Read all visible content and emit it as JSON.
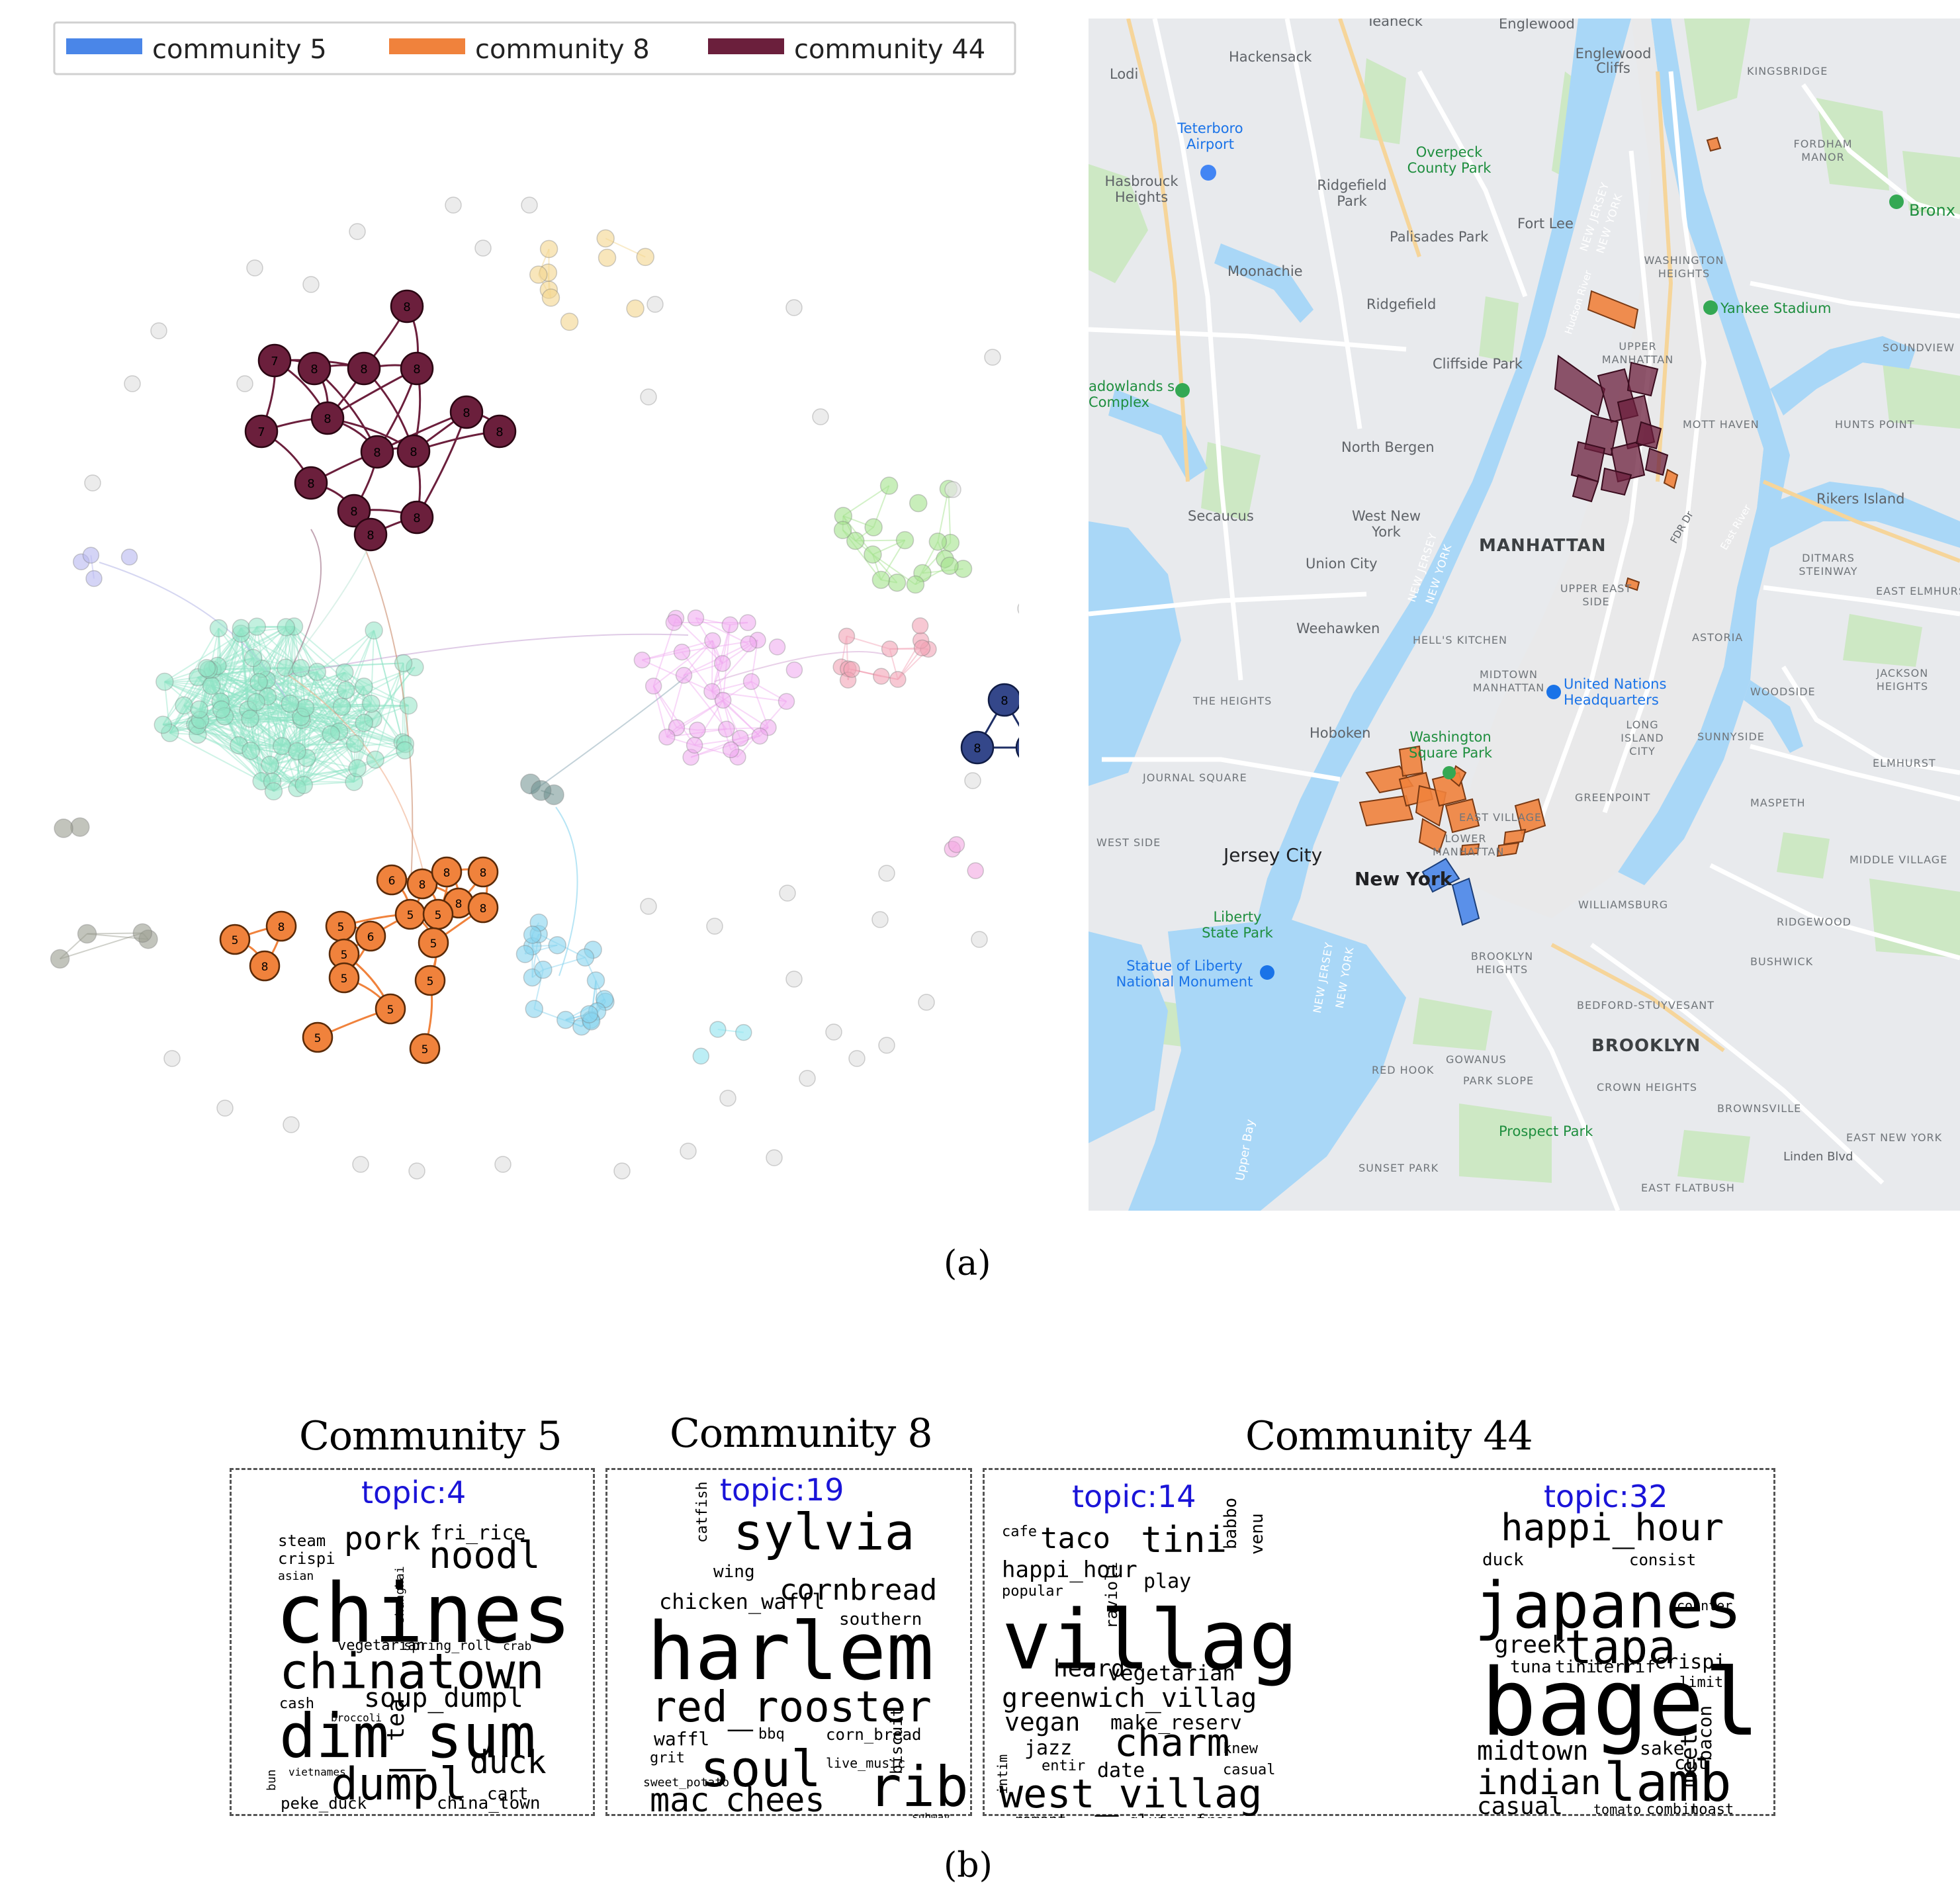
{
  "legend": {
    "entries": [
      {
        "label": "community 5",
        "color": "#4a86e8"
      },
      {
        "label": "community 8",
        "color": "#f0823c"
      },
      {
        "label": "community 44",
        "color": "#6b1f3c"
      }
    ]
  },
  "graph": {
    "node_labels": {
      "a": "7",
      "b": "8",
      "c": "6",
      "d": "5"
    }
  },
  "map": {
    "labels": {
      "teaneck": "Teaneck",
      "englewood": "Englewood",
      "hackensack": "Hackensack",
      "lodi": "Lodi",
      "englewood_cliffs": "Englewood Cliffs",
      "kingsbridge": "KINGSBRIDGE",
      "teterboro": "Teterboro Airport",
      "overpeck": "Overpeck County Park",
      "fordham": "FORDHAM MANOR",
      "hasbrouck": "Hasbrouck Heights",
      "ridgefield_park": "Ridgefield Park",
      "fort_lee": "Fort Lee",
      "bronx": "Bronx",
      "palisades_park": "Palisades Park",
      "washington_heights": "WASHINGTON HEIGHTS",
      "moonachie": "Moonachie",
      "ridgefield": "Ridgefield",
      "yankee_stadium": "Yankee Stadium",
      "upper_manhattan": "UPPER MANHATTAN",
      "cliffside_park": "Cliffside Park",
      "meadowlands": "adowlands s Complex",
      "soundview": "SOUNDVIEW",
      "mott_haven": "MOTT HAVEN",
      "hunts_point": "HUNTS POINT",
      "north_bergen": "North Bergen",
      "rikers": "Rikers Island",
      "secaucus": "Secaucus",
      "west_new_york": "West New York",
      "manhattan": "MANHATTAN",
      "union_city": "Union City",
      "ditmars": "DITMARS STEINWAY",
      "upper_east_side": "UPPER EAST SIDE",
      "east_elmhurst": "EAST ELMHURST",
      "weehawken": "Weehawken",
      "astoria": "ASTORIA",
      "hells_kitchen": "HELL'S KITCHEN",
      "midtown": "MIDTOWN MANHATTAN",
      "united_nations": "United Nations Headquarters",
      "jackson_heights": "JACKSON HEIGHTS",
      "the_heights": "THE HEIGHTS",
      "woodside": "WOODSIDE",
      "hoboken": "Hoboken",
      "long_island_city": "LONG ISLAND CITY",
      "sunnyside": "SUNNYSIDE",
      "washington_square": "Washington Square Park",
      "elmhurst": "ELMHURST",
      "journal_square": "JOURNAL SQUARE",
      "greenpoint": "GREENPOINT",
      "maspeth": "MASPETH",
      "east_village": "EAST VILLAGE",
      "jersey_city": "Jersey City",
      "new_york": "New York",
      "lower_manhattan": "LOWER MANHATTAN",
      "middle_village": "MIDDLE VILLAGE",
      "west_side": "WEST SIDE",
      "williamsburg": "WILLIAMSBURG",
      "liberty_state_park": "Liberty State Park",
      "ridgewood": "RIDGEWOOD",
      "statue_of_liberty": "Statue of Liberty National Monument",
      "brooklyn_heights": "BROOKLYN HEIGHTS",
      "bushwick": "BUSHWICK",
      "bedford_stuyvesant": "BEDFORD-STUYVESANT",
      "brooklyn": "BROOKLYN",
      "red_hook": "RED HOOK",
      "gowanus": "GOWANUS",
      "park_slope": "PARK SLOPE",
      "crown_heights": "CROWN HEIGHTS",
      "brownsville": "BROWNSVILLE",
      "prospect_park": "Prospect Park",
      "east_new_york": "EAST NEW YORK",
      "sunset_park": "SUNSET PARK",
      "linden_blvd": "Linden Blvd",
      "east_flatbush": "EAST FLATBUSH",
      "upper_bay": "Upper Bay",
      "new_jersey": "NEW JERSEY",
      "nj_ny": "NEW YORK",
      "hudson": "Hudson River",
      "east_river": "East River",
      "fdr": "FDR Dr"
    }
  },
  "captions": {
    "a": "(a)",
    "b": "(b)"
  },
  "communities": [
    {
      "title": "Community 5",
      "topics": [
        {
          "name": "topic:4"
        }
      ]
    },
    {
      "title": "Community 8",
      "topics": [
        {
          "name": "topic:19"
        }
      ]
    },
    {
      "title": "Community 44",
      "topics": [
        {
          "name": "topic:14"
        },
        {
          "name": "topic:32"
        }
      ]
    }
  ],
  "wordclouds": {
    "t4": [
      {
        "w": "steam",
        "s": 24
      },
      {
        "w": "crispi",
        "s": 24
      },
      {
        "w": "asian",
        "s": 18
      },
      {
        "w": "pork",
        "s": 48
      },
      {
        "w": "fri_rice",
        "s": 30
      },
      {
        "w": "noodl",
        "s": 56
      },
      {
        "w": "chines",
        "s": 124
      },
      {
        "w": "shanghai",
        "s": 18
      },
      {
        "w": "vegetarian",
        "s": 22
      },
      {
        "w": "spring_roll",
        "s": 20
      },
      {
        "w": "crab",
        "s": 18
      },
      {
        "w": "chinatown",
        "s": 74
      },
      {
        "w": "cash",
        "s": 22
      },
      {
        "w": "soup_dumpl",
        "s": 40
      },
      {
        "w": "tea",
        "s": 36
      },
      {
        "w": "broccoli",
        "s": 16
      },
      {
        "w": "dim_sum",
        "s": 92
      },
      {
        "w": "duck",
        "s": 48
      },
      {
        "w": "dumpl",
        "s": 68
      },
      {
        "w": "cart",
        "s": 26
      },
      {
        "w": "peke_duck",
        "s": 24
      },
      {
        "w": "china_town",
        "s": 26
      },
      {
        "w": "bun",
        "s": 18
      },
      {
        "w": "vietnames",
        "s": 16
      }
    ],
    "t19": [
      {
        "w": "sylvia",
        "s": 76
      },
      {
        "w": "catfish",
        "s": 22
      },
      {
        "w": "wing",
        "s": 26
      },
      {
        "w": "cornbread",
        "s": 44
      },
      {
        "w": "chicken_waffl",
        "s": 32
      },
      {
        "w": "southern",
        "s": 26
      },
      {
        "w": "harlem",
        "s": 120
      },
      {
        "w": "red_rooster",
        "s": 64
      },
      {
        "w": "waffl",
        "s": 28
      },
      {
        "w": "bbq",
        "s": 22
      },
      {
        "w": "corn_bread",
        "s": 24
      },
      {
        "w": "biscuit",
        "s": 24
      },
      {
        "w": "soul",
        "s": 76
      },
      {
        "w": "live_music",
        "s": 20
      },
      {
        "w": "grit",
        "s": 22
      },
      {
        "w": "sweet_potato",
        "s": 18
      },
      {
        "w": "rib",
        "s": 84
      },
      {
        "w": "mac",
        "s": 50
      },
      {
        "w": "chees",
        "s": 50
      },
      {
        "w": "collard_green",
        "s": 24
      },
      {
        "w": "subway",
        "s": 16
      }
    ],
    "t14": [
      {
        "w": "cafe",
        "s": 22
      },
      {
        "w": "taco",
        "s": 44
      },
      {
        "w": "tini",
        "s": 54
      },
      {
        "w": "babbo",
        "s": 26
      },
      {
        "w": "venu",
        "s": 26
      },
      {
        "w": "happi_hour",
        "s": 34
      },
      {
        "w": "play",
        "s": 30
      },
      {
        "w": "popular",
        "s": 22
      },
      {
        "w": "ravioli",
        "s": 24
      },
      {
        "w": "villag",
        "s": 124
      },
      {
        "w": "heard",
        "s": 36
      },
      {
        "w": "vegetarian",
        "s": 32
      },
      {
        "w": "greenwich_villag",
        "s": 40
      },
      {
        "w": "vegan",
        "s": 38
      },
      {
        "w": "make_reserv",
        "s": 30
      },
      {
        "w": "charm",
        "s": 58
      },
      {
        "w": "jazz",
        "s": 30
      },
      {
        "w": "knew",
        "s": 22
      },
      {
        "w": "date",
        "s": 30
      },
      {
        "w": "entir",
        "s": 22
      },
      {
        "w": "casual",
        "s": 22
      },
      {
        "w": "west_villag",
        "s": 60
      },
      {
        "w": "romant",
        "s": 22
      },
      {
        "w": "gluten_free",
        "s": 24
      },
      {
        "w": "intim",
        "s": 20
      }
    ],
    "t32": [
      {
        "w": "happi_hour",
        "s": 56
      },
      {
        "w": "duck",
        "s": 26
      },
      {
        "w": "consist",
        "s": 24
      },
      {
        "w": "japanes",
        "s": 96
      },
      {
        "w": "tapa",
        "s": 70
      },
      {
        "w": "counter",
        "s": 20
      },
      {
        "w": "greek",
        "s": 36
      },
      {
        "w": "tuna",
        "s": 26
      },
      {
        "w": "tini",
        "s": 26
      },
      {
        "w": "terrif",
        "s": 26
      },
      {
        "w": "crispi",
        "s": 30
      },
      {
        "w": "limit",
        "s": 22
      },
      {
        "w": "bagel",
        "s": 140
      },
      {
        "w": "bacon",
        "s": 28
      },
      {
        "w": "meet",
        "s": 34
      },
      {
        "w": "midtown",
        "s": 40
      },
      {
        "w": "sake",
        "s": 28
      },
      {
        "w": "cut",
        "s": 28
      },
      {
        "w": "indian",
        "s": 52
      },
      {
        "w": "lamb",
        "s": 80
      },
      {
        "w": "casual",
        "s": 36
      },
      {
        "w": "tomato",
        "s": 20
      },
      {
        "w": "combin",
        "s": 22
      },
      {
        "w": "toast",
        "s": 22
      }
    ]
  }
}
